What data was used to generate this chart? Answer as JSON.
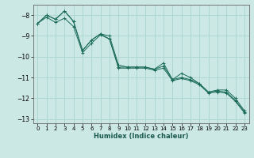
{
  "xlabel": "Humidex (Indice chaleur)",
  "ylabel": "",
  "bg_color": "#cce8e4",
  "grid_color": "#aad4cf",
  "line_color": "#1a6b5a",
  "marker_color": "#1a6b5a",
  "xlim": [
    -0.5,
    23.5
  ],
  "ylim": [
    -13.2,
    -7.5
  ],
  "yticks": [
    -13,
    -12,
    -11,
    -10,
    -9,
    -8
  ],
  "xticks": [
    0,
    1,
    2,
    3,
    4,
    5,
    6,
    7,
    8,
    9,
    10,
    11,
    12,
    13,
    14,
    15,
    16,
    17,
    18,
    19,
    20,
    21,
    22,
    23
  ],
  "series": [
    {
      "x": [
        0,
        1,
        2,
        3,
        4,
        5,
        6,
        7,
        8,
        9,
        10,
        11,
        12,
        13,
        14,
        15,
        16,
        17,
        18,
        19,
        20,
        21,
        22,
        23
      ],
      "y": [
        -8.4,
        -8.0,
        -8.2,
        -7.8,
        -8.3,
        -9.7,
        -9.2,
        -8.9,
        -9.0,
        -10.4,
        -10.5,
        -10.5,
        -10.5,
        -10.6,
        -10.3,
        -11.1,
        -10.8,
        -11.0,
        -11.3,
        -11.7,
        -11.6,
        -11.6,
        -12.0,
        -12.6
      ]
    },
    {
      "x": [
        0,
        1,
        2,
        3,
        4,
        5,
        6,
        7,
        8,
        9,
        10,
        11,
        12,
        13,
        14,
        15,
        16,
        17,
        18,
        19,
        20,
        21,
        22,
        23
      ],
      "y": [
        -8.4,
        -8.0,
        -8.2,
        -7.8,
        -8.3,
        -9.7,
        -9.2,
        -8.9,
        -9.15,
        -10.5,
        -10.5,
        -10.5,
        -10.5,
        -10.6,
        -10.45,
        -11.1,
        -11.0,
        -11.1,
        -11.3,
        -11.7,
        -11.65,
        -11.7,
        -12.1,
        -12.65
      ]
    },
    {
      "x": [
        0,
        1,
        2,
        3,
        4,
        5,
        6,
        7,
        8,
        9,
        10,
        11,
        12,
        13,
        14,
        15,
        16,
        17,
        18,
        19,
        20,
        21,
        22,
        23
      ],
      "y": [
        -8.4,
        -8.1,
        -8.35,
        -8.15,
        -8.55,
        -9.8,
        -9.35,
        -8.95,
        -9.15,
        -10.55,
        -10.55,
        -10.55,
        -10.55,
        -10.65,
        -10.55,
        -11.15,
        -11.05,
        -11.15,
        -11.35,
        -11.75,
        -11.7,
        -11.75,
        -12.15,
        -12.7
      ]
    }
  ]
}
